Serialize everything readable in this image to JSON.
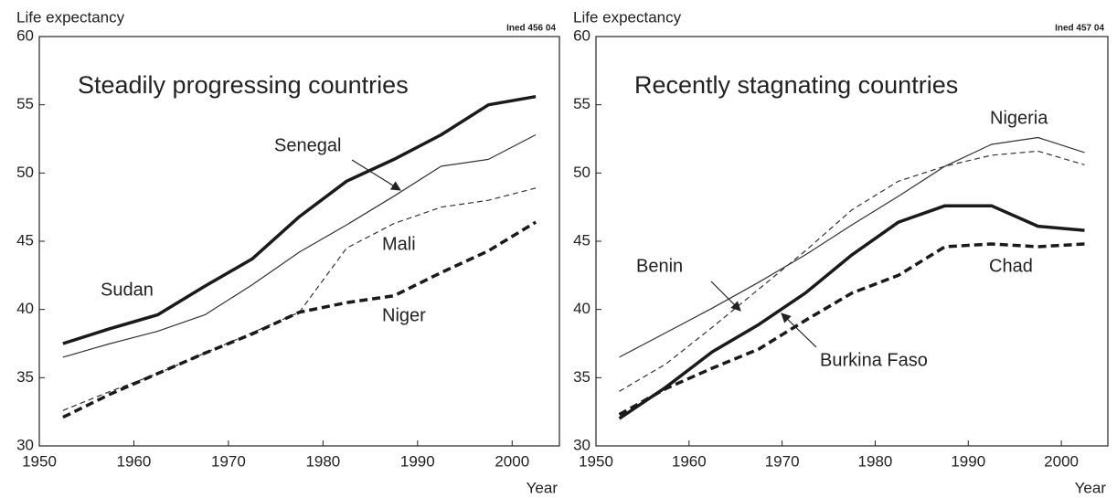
{
  "chart_data": [
    {
      "type": "line",
      "title": "Steadily progressing countries",
      "y_label": "Life expectancy",
      "x_label": "Year",
      "annotation": "Ined 456 04",
      "x": [
        1952.5,
        1957.5,
        1962.5,
        1967.5,
        1972.5,
        1977.5,
        1982.5,
        1987.5,
        1992.5,
        1997.5,
        2002.5
      ],
      "xlim": [
        1950,
        2005
      ],
      "xticks": [
        1950,
        1960,
        1970,
        1980,
        1990,
        2000
      ],
      "ylim": [
        30,
        60
      ],
      "yticks": [
        30,
        35,
        40,
        45,
        50,
        55,
        60
      ],
      "series": [
        {
          "name": "Sudan",
          "color": "#1a1a1a",
          "style": "solid",
          "width": 3.5,
          "values": [
            37.5,
            38.6,
            39.6,
            41.7,
            43.7,
            46.8,
            49.4,
            51.0,
            52.8,
            55.0,
            55.6
          ]
        },
        {
          "name": "Senegal",
          "color": "#333333",
          "style": "solid",
          "width": 1.2,
          "values": [
            36.5,
            37.5,
            38.4,
            39.6,
            41.8,
            44.2,
            46.2,
            48.3,
            50.5,
            51.0,
            52.8
          ]
        },
        {
          "name": "Mali",
          "color": "#333333",
          "style": "dashed",
          "width": 1.2,
          "values": [
            32.6,
            34.0,
            35.3,
            36.8,
            38.3,
            39.8,
            44.5,
            46.3,
            47.5,
            48.0,
            48.9
          ]
        },
        {
          "name": "Niger",
          "color": "#1a1a1a",
          "style": "dashed",
          "width": 3.5,
          "values": [
            32.1,
            33.8,
            35.3,
            36.8,
            38.2,
            39.8,
            40.5,
            41.0,
            42.7,
            44.3,
            46.4
          ]
        }
      ]
    },
    {
      "type": "line",
      "title": "Recently stagnating countries",
      "y_label": "Life expectancy",
      "x_label": "Year",
      "annotation": "Ined 457 04",
      "x": [
        1952.5,
        1957.5,
        1962.5,
        1967.5,
        1972.5,
        1977.5,
        1982.5,
        1987.5,
        1992.5,
        1997.5,
        2002.5
      ],
      "xlim": [
        1950,
        2005
      ],
      "xticks": [
        1950,
        1960,
        1970,
        1980,
        1990,
        2000
      ],
      "ylim": [
        30,
        60
      ],
      "yticks": [
        30,
        35,
        40,
        45,
        50,
        55,
        60
      ],
      "series": [
        {
          "name": "Nigeria",
          "color": "#333333",
          "style": "solid",
          "width": 1.2,
          "values": [
            36.5,
            38.3,
            40.1,
            42.0,
            44.0,
            46.2,
            48.3,
            50.5,
            52.1,
            52.6,
            51.5
          ]
        },
        {
          "name": "Benin",
          "color": "#333333",
          "style": "dashed",
          "width": 1.2,
          "values": [
            34.0,
            36.0,
            38.7,
            41.5,
            44.3,
            47.3,
            49.4,
            50.5,
            51.3,
            51.6,
            50.6
          ]
        },
        {
          "name": "Burkina Faso",
          "color": "#1a1a1a",
          "style": "solid",
          "width": 3.5,
          "values": [
            32.0,
            34.3,
            36.9,
            38.9,
            41.2,
            44.0,
            46.4,
            47.6,
            47.6,
            46.1,
            45.8
          ]
        },
        {
          "name": "Chad",
          "color": "#1a1a1a",
          "style": "dashed",
          "width": 3.5,
          "values": [
            32.3,
            34.2,
            35.7,
            37.1,
            39.2,
            41.2,
            42.5,
            44.6,
            44.8,
            44.6,
            44.8
          ]
        }
      ]
    }
  ]
}
